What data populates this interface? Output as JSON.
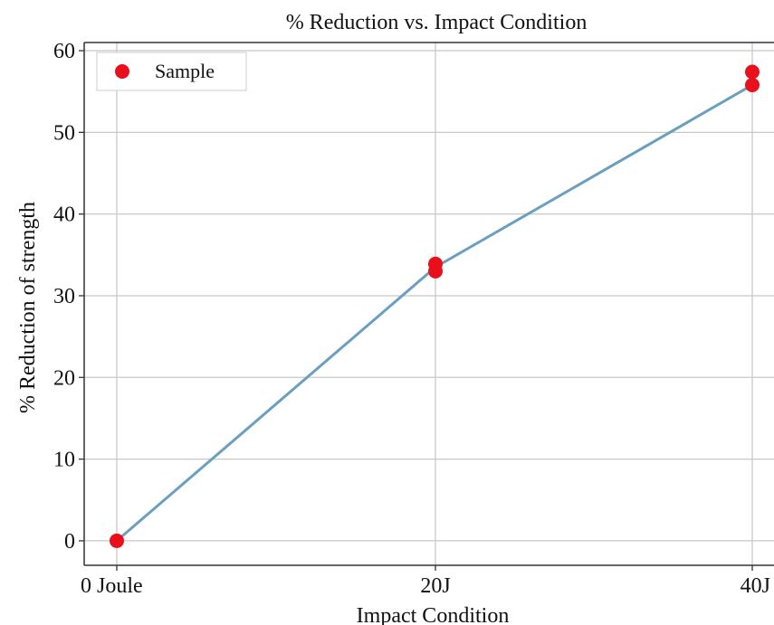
{
  "chart_data": {
    "type": "line",
    "title": "% Reduction vs. Impact Condition",
    "xlabel": "Impact Condition",
    "ylabel": "% Reduction of strength",
    "categories": [
      "0 Joule",
      "20J",
      "40J"
    ],
    "ylim": [
      -3,
      61
    ],
    "yticks": [
      0,
      10,
      20,
      30,
      40,
      50,
      60
    ],
    "grid": true,
    "legend": {
      "position": "top-left",
      "entries": [
        "Sample"
      ]
    },
    "series": [
      {
        "name": "Sample",
        "kind": "scatter",
        "color": "#e8101a",
        "points": [
          {
            "x": "0 Joule",
            "y": 0
          },
          {
            "x": "20J",
            "y": 33.9
          },
          {
            "x": "20J",
            "y": 33.0
          },
          {
            "x": "40J",
            "y": 57.4
          },
          {
            "x": "40J",
            "y": 55.8
          }
        ]
      },
      {
        "kind": "line",
        "color": "#6a9fc0",
        "points": [
          {
            "x": "0 Joule",
            "y": 0
          },
          {
            "x": "20J",
            "y": 33.5
          },
          {
            "x": "40J",
            "y": 55.8
          }
        ]
      }
    ]
  },
  "colors": {
    "grid": "#c8c8c8",
    "axis": "#333333",
    "legend_border": "#cccccc"
  }
}
